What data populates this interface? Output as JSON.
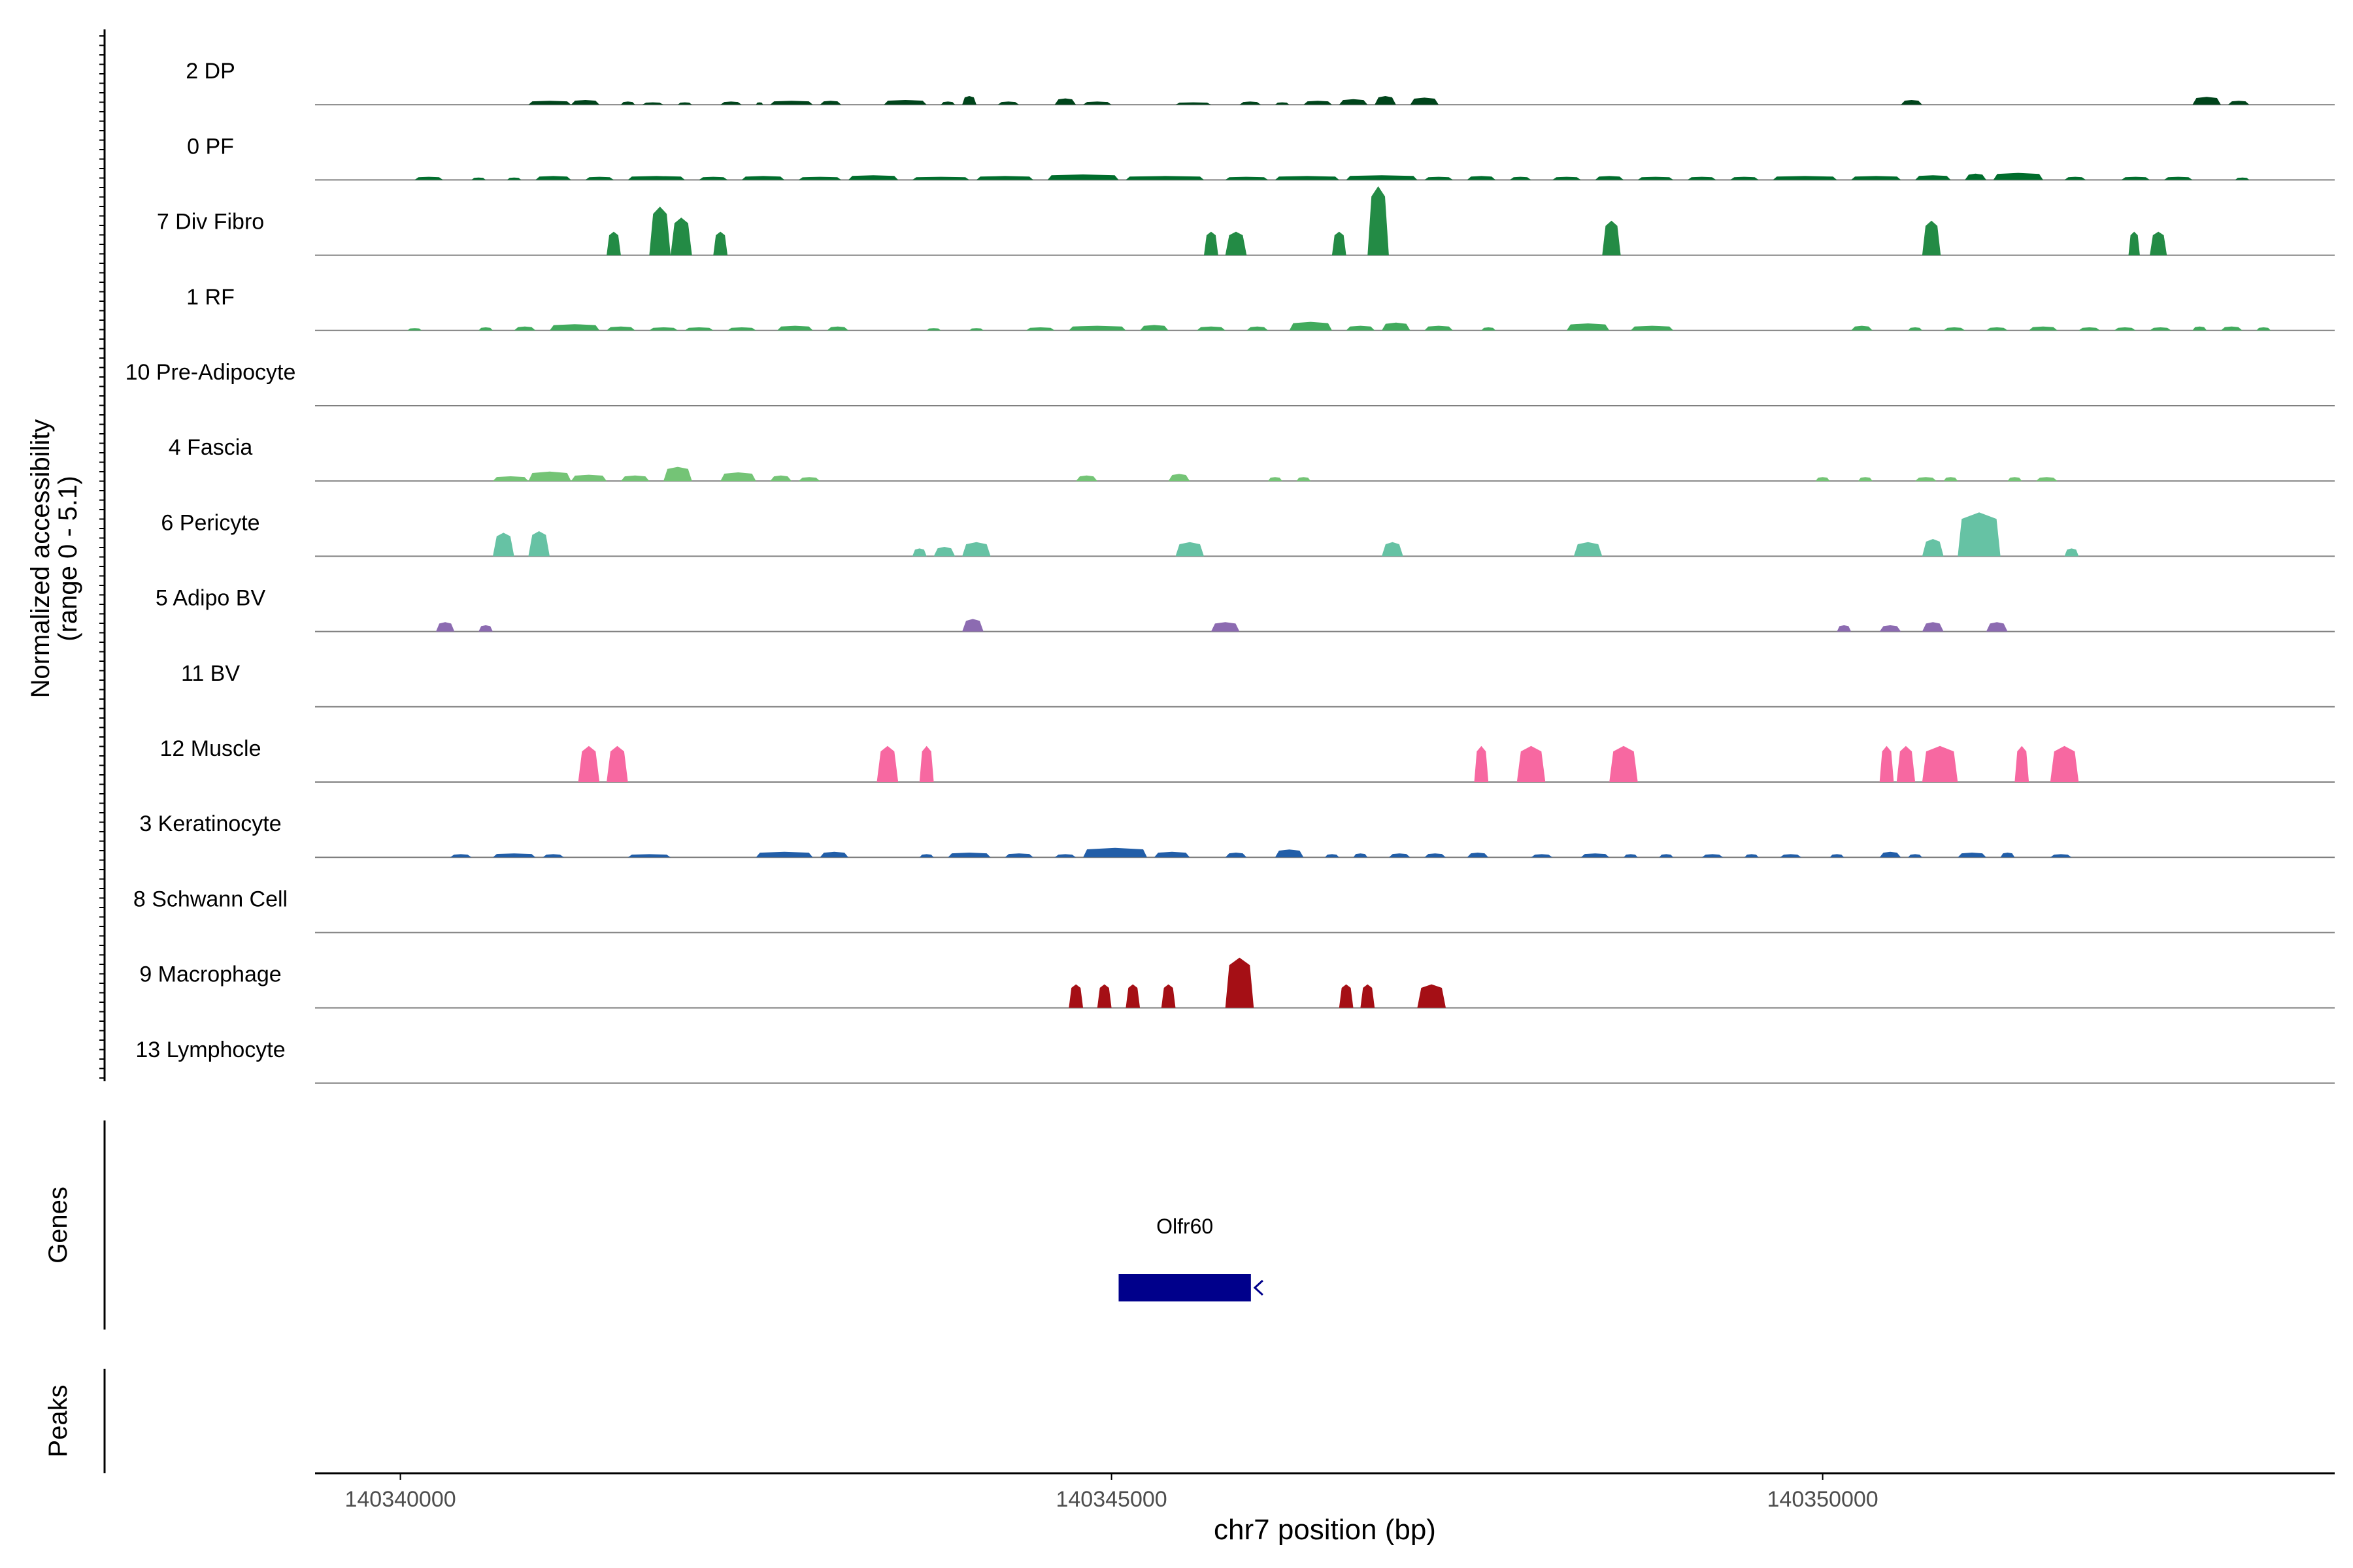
{
  "chart_data": {
    "type": "area",
    "chromosome": "chr7",
    "xlabel": "chr7 position (bp)",
    "xlim": [
      140339400,
      140353600
    ],
    "x_ticks": [
      140340000,
      140345000,
      140350000
    ],
    "x_tick_labels": [
      "140340000",
      "140345000",
      "140350000"
    ],
    "ylabel_line1": "Normalized accessibility",
    "ylabel_line2": "(range 0 - 5.1)",
    "ylim": [
      0,
      5.1
    ],
    "grid": false,
    "series": [
      {
        "name": "2 DP",
        "color": "#00441B",
        "peaks": [
          [
            140340900,
            140341200,
            0.25
          ],
          [
            140341200,
            140341400,
            0.3
          ],
          [
            140341550,
            140341650,
            0.2
          ],
          [
            140341700,
            140341850,
            0.15
          ],
          [
            140341950,
            140342050,
            0.15
          ],
          [
            140342250,
            140342400,
            0.2
          ],
          [
            140342500,
            140342550,
            0.15
          ],
          [
            140342600,
            140342900,
            0.25
          ],
          [
            140342950,
            140343100,
            0.25
          ],
          [
            140343400,
            140343700,
            0.3
          ],
          [
            140343800,
            140343900,
            0.2
          ],
          [
            140343950,
            140344050,
            0.55
          ],
          [
            140344200,
            140344350,
            0.2
          ],
          [
            140344600,
            140344750,
            0.4
          ],
          [
            140344800,
            140345000,
            0.2
          ],
          [
            140345450,
            140345700,
            0.15
          ],
          [
            140345900,
            140346050,
            0.2
          ],
          [
            140346150,
            140346250,
            0.15
          ],
          [
            140346350,
            140346550,
            0.25
          ],
          [
            140346600,
            140346800,
            0.35
          ],
          [
            140346850,
            140347000,
            0.55
          ],
          [
            140347100,
            140347300,
            0.45
          ],
          [
            140350550,
            140350700,
            0.3
          ],
          [
            140352600,
            140352800,
            0.5
          ],
          [
            140352850,
            140353000,
            0.25
          ]
        ]
      },
      {
        "name": "0 PF",
        "color": "#006D2C",
        "peaks": [
          [
            140340100,
            140340300,
            0.2
          ],
          [
            140340500,
            140340600,
            0.15
          ],
          [
            140340750,
            140340850,
            0.15
          ],
          [
            140340950,
            140341200,
            0.25
          ],
          [
            140341300,
            140341500,
            0.2
          ],
          [
            140341600,
            140342000,
            0.25
          ],
          [
            140342100,
            140342300,
            0.2
          ],
          [
            140342400,
            140342700,
            0.25
          ],
          [
            140342800,
            140343100,
            0.2
          ],
          [
            140343150,
            140343500,
            0.3
          ],
          [
            140343600,
            140344000,
            0.2
          ],
          [
            140344050,
            140344450,
            0.25
          ],
          [
            140344550,
            140345050,
            0.35
          ],
          [
            140345100,
            140345650,
            0.25
          ],
          [
            140345800,
            140346100,
            0.2
          ],
          [
            140346150,
            140346600,
            0.25
          ],
          [
            140346650,
            140347150,
            0.3
          ],
          [
            140347200,
            140347400,
            0.2
          ],
          [
            140347500,
            140347700,
            0.25
          ],
          [
            140347800,
            140347950,
            0.2
          ],
          [
            140348100,
            140348300,
            0.2
          ],
          [
            140348400,
            140348600,
            0.25
          ],
          [
            140348700,
            140348950,
            0.2
          ],
          [
            140349050,
            140349250,
            0.2
          ],
          [
            140349350,
            140349550,
            0.2
          ],
          [
            140349650,
            140350100,
            0.25
          ],
          [
            140350200,
            140350550,
            0.25
          ],
          [
            140350650,
            140350900,
            0.3
          ],
          [
            140351000,
            140351150,
            0.4
          ],
          [
            140351200,
            140351550,
            0.45
          ],
          [
            140351700,
            140351850,
            0.2
          ],
          [
            140352100,
            140352300,
            0.2
          ],
          [
            140352400,
            140352600,
            0.2
          ],
          [
            140352900,
            140353000,
            0.15
          ]
        ]
      },
      {
        "name": "7 Div Fibro",
        "color": "#238B45",
        "peaks": [
          [
            140341450,
            140341550,
            1.5
          ],
          [
            140341750,
            140341900,
            3.1
          ],
          [
            140341900,
            140342050,
            2.4
          ],
          [
            140342200,
            140342300,
            1.5
          ],
          [
            140345650,
            140345750,
            1.5
          ],
          [
            140345800,
            140345950,
            1.5
          ],
          [
            140346550,
            140346650,
            1.5
          ],
          [
            140346800,
            140346950,
            4.4
          ],
          [
            140348450,
            140348580,
            2.2
          ],
          [
            140350700,
            140350830,
            2.2
          ],
          [
            140352150,
            140352230,
            1.5
          ],
          [
            140352300,
            140352420,
            1.5
          ]
        ]
      },
      {
        "name": "1 RF",
        "color": "#41AB5D",
        "peaks": [
          [
            140340050,
            140340150,
            0.15
          ],
          [
            140340550,
            140340650,
            0.2
          ],
          [
            140340800,
            140340950,
            0.25
          ],
          [
            140341050,
            140341400,
            0.4
          ],
          [
            140341450,
            140341650,
            0.25
          ],
          [
            140341750,
            140341950,
            0.2
          ],
          [
            140342000,
            140342200,
            0.2
          ],
          [
            140342300,
            140342500,
            0.2
          ],
          [
            140342650,
            140342900,
            0.3
          ],
          [
            140343000,
            140343150,
            0.25
          ],
          [
            140343700,
            140343800,
            0.15
          ],
          [
            140344000,
            140344100,
            0.15
          ],
          [
            140344400,
            140344600,
            0.2
          ],
          [
            140344700,
            140345100,
            0.3
          ],
          [
            140345200,
            140345400,
            0.35
          ],
          [
            140345600,
            140345800,
            0.25
          ],
          [
            140345950,
            140346100,
            0.25
          ],
          [
            140346250,
            140346550,
            0.55
          ],
          [
            140346650,
            140346850,
            0.3
          ],
          [
            140346900,
            140347100,
            0.5
          ],
          [
            140347200,
            140347400,
            0.3
          ],
          [
            140347600,
            140347700,
            0.2
          ],
          [
            140348200,
            140348500,
            0.45
          ],
          [
            140348650,
            140348950,
            0.3
          ],
          [
            140350200,
            140350350,
            0.3
          ],
          [
            140350600,
            140350700,
            0.2
          ],
          [
            140350850,
            140351000,
            0.2
          ],
          [
            140351150,
            140351300,
            0.2
          ],
          [
            140351450,
            140351650,
            0.25
          ],
          [
            140351800,
            140351950,
            0.2
          ],
          [
            140352050,
            140352200,
            0.2
          ],
          [
            140352300,
            140352450,
            0.2
          ],
          [
            140352600,
            140352700,
            0.25
          ],
          [
            140352800,
            140352950,
            0.25
          ],
          [
            140353050,
            140353150,
            0.2
          ]
        ]
      },
      {
        "name": "10 Pre-Adipocyte",
        "color": "#74C476",
        "peaks": []
      },
      {
        "name": "4 Fascia",
        "color": "#74C476",
        "peaks": [
          [
            140340650,
            140340900,
            0.3
          ],
          [
            140340900,
            140341200,
            0.6
          ],
          [
            140341200,
            140341450,
            0.4
          ],
          [
            140341550,
            140341750,
            0.35
          ],
          [
            140341850,
            140342050,
            0.9
          ],
          [
            140342250,
            140342500,
            0.55
          ],
          [
            140342600,
            140342750,
            0.35
          ],
          [
            140342800,
            140342950,
            0.25
          ],
          [
            140344750,
            140344900,
            0.35
          ],
          [
            140345400,
            140345550,
            0.45
          ],
          [
            140346100,
            140346200,
            0.25
          ],
          [
            140346300,
            140346400,
            0.25
          ],
          [
            140349950,
            140350050,
            0.25
          ],
          [
            140350250,
            140350350,
            0.25
          ],
          [
            140350650,
            140350800,
            0.25
          ],
          [
            140350850,
            140350950,
            0.25
          ],
          [
            140351300,
            140351400,
            0.25
          ],
          [
            140351500,
            140351650,
            0.25
          ]
        ]
      },
      {
        "name": "6 Pericyte",
        "color": "#66C2A4",
        "peaks": [
          [
            140340650,
            140340800,
            1.5
          ],
          [
            140340900,
            140341050,
            1.6
          ],
          [
            140343600,
            140343700,
            0.5
          ],
          [
            140343750,
            140343900,
            0.6
          ],
          [
            140343950,
            140344150,
            0.9
          ],
          [
            140345450,
            140345650,
            0.9
          ],
          [
            140346900,
            140347050,
            0.9
          ],
          [
            140348250,
            140348450,
            0.9
          ],
          [
            140350700,
            140350850,
            1.1
          ],
          [
            140350950,
            140351250,
            2.8
          ],
          [
            140351700,
            140351800,
            0.5
          ]
        ]
      },
      {
        "name": "5 Adipo BV",
        "color": "#8C6BB1",
        "peaks": [
          [
            140340250,
            140340380,
            0.6
          ],
          [
            140340550,
            140340650,
            0.4
          ],
          [
            140343950,
            140344100,
            0.8
          ],
          [
            140345700,
            140345900,
            0.6
          ],
          [
            140350100,
            140350200,
            0.4
          ],
          [
            140350400,
            140350550,
            0.4
          ],
          [
            140350700,
            140350850,
            0.6
          ],
          [
            140351150,
            140351300,
            0.6
          ]
        ]
      },
      {
        "name": "11 BV",
        "color": "#8C6BB1",
        "peaks": []
      },
      {
        "name": "12 Muscle",
        "color": "#F768A1",
        "peaks": [
          [
            140341250,
            140341400,
            2.3
          ],
          [
            140341450,
            140341600,
            2.3
          ],
          [
            140343350,
            140343500,
            2.3
          ],
          [
            140343650,
            140343750,
            2.3
          ],
          [
            140347550,
            140347650,
            2.3
          ],
          [
            140347850,
            140348050,
            2.3
          ],
          [
            140348500,
            140348700,
            2.3
          ],
          [
            140350400,
            140350500,
            2.3
          ],
          [
            140350520,
            140350650,
            2.3
          ],
          [
            140350700,
            140350950,
            2.3
          ],
          [
            140351350,
            140351450,
            2.3
          ],
          [
            140351600,
            140351800,
            2.3
          ]
        ]
      },
      {
        "name": "3 Keratinocyte",
        "color": "#225EA8",
        "peaks": [
          [
            140340350,
            140340500,
            0.2
          ],
          [
            140340650,
            140340950,
            0.25
          ],
          [
            140341000,
            140341150,
            0.2
          ],
          [
            140341600,
            140341900,
            0.2
          ],
          [
            140342500,
            140342900,
            0.35
          ],
          [
            140342950,
            140343150,
            0.35
          ],
          [
            140343650,
            140343750,
            0.2
          ],
          [
            140343850,
            140344150,
            0.3
          ],
          [
            140344250,
            140344450,
            0.25
          ],
          [
            140344600,
            140344750,
            0.2
          ],
          [
            140344800,
            140345250,
            0.6
          ],
          [
            140345300,
            140345550,
            0.35
          ],
          [
            140345800,
            140345950,
            0.3
          ],
          [
            140346150,
            140346350,
            0.5
          ],
          [
            140346500,
            140346600,
            0.2
          ],
          [
            140346700,
            140346800,
            0.25
          ],
          [
            140346950,
            140347100,
            0.25
          ],
          [
            140347200,
            140347350,
            0.25
          ],
          [
            140347500,
            140347650,
            0.3
          ],
          [
            140347950,
            140348100,
            0.2
          ],
          [
            140348300,
            140348500,
            0.25
          ],
          [
            140348600,
            140348700,
            0.2
          ],
          [
            140348850,
            140348950,
            0.2
          ],
          [
            140349150,
            140349300,
            0.2
          ],
          [
            140349450,
            140349550,
            0.2
          ],
          [
            140349700,
            140349850,
            0.2
          ],
          [
            140350050,
            140350150,
            0.2
          ],
          [
            140350400,
            140350550,
            0.35
          ],
          [
            140350600,
            140350700,
            0.2
          ],
          [
            140350950,
            140351150,
            0.3
          ],
          [
            140351250,
            140351350,
            0.3
          ],
          [
            140351600,
            140351750,
            0.2
          ]
        ]
      },
      {
        "name": "8 Schwann Cell",
        "color": "#225EA8",
        "peaks": []
      },
      {
        "name": "9 Macrophage",
        "color": "#A50F15",
        "peaks": [
          [
            140344700,
            140344800,
            1.5
          ],
          [
            140344900,
            140345000,
            1.5
          ],
          [
            140345100,
            140345200,
            1.5
          ],
          [
            140345350,
            140345450,
            1.5
          ],
          [
            140345800,
            140346000,
            3.2
          ],
          [
            140346600,
            140346700,
            1.5
          ],
          [
            140346750,
            140346850,
            1.5
          ],
          [
            140347150,
            140347350,
            1.5
          ]
        ]
      },
      {
        "name": "13 Lymphocyte",
        "color": "#A50F15",
        "peaks": []
      }
    ],
    "genes": {
      "label": "Genes",
      "items": [
        {
          "name": "Olfr60",
          "start": 140345050,
          "end": 140345980,
          "strand": "-",
          "color": "#00008B"
        }
      ]
    },
    "peaks_track": {
      "label": "Peaks",
      "items": []
    }
  }
}
